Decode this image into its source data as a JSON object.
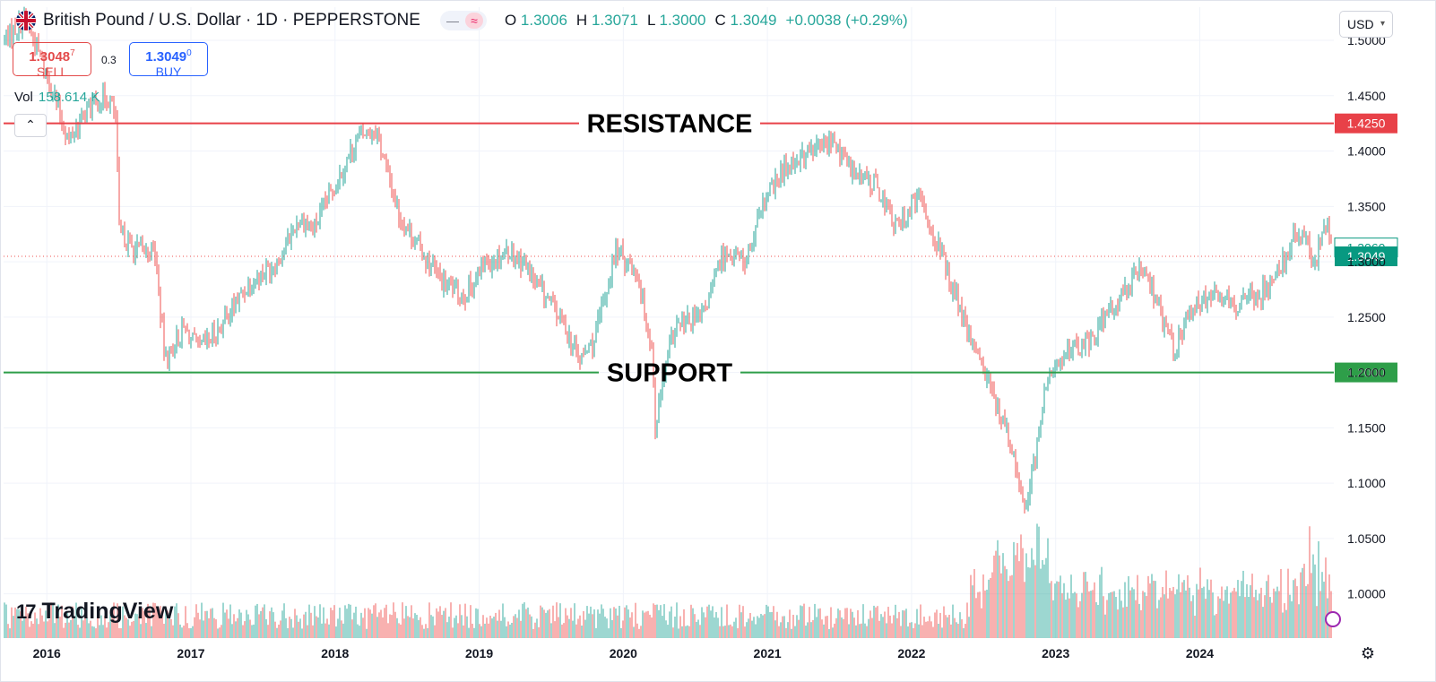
{
  "header": {
    "symbol_title": "British Pound / U.S. Dollar · 1D · PEPPERSTONE",
    "open_label": "O",
    "open_value": "1.3006",
    "high_label": "H",
    "high_value": "1.3071",
    "low_label": "L",
    "low_value": "1.3000",
    "close_label": "C",
    "close_value": "1.3049",
    "change": "+0.0038 (+0.29%)",
    "pill_left_icon": "dash-icon",
    "pill_right_icon": "wave-icon"
  },
  "trade": {
    "sell_price": "1.3048",
    "sell_price_sup": "7",
    "sell_label": "SELL",
    "spread": "0.3",
    "buy_price": "1.3049",
    "buy_price_sup": "0",
    "buy_label": "BUY"
  },
  "volume": {
    "label": "Vol",
    "value": "158.614 K"
  },
  "collapse_icon": "chevron-up-icon",
  "currency_button": "USD",
  "logo_text": "TradingView",
  "colors": {
    "up": "#26a69a",
    "down": "#ef5350",
    "resistance": "#e84148",
    "support": "#2e9e49",
    "last": "#089981",
    "buy": "#2962ff",
    "sell": "#e34a4a"
  },
  "chart_data": {
    "type": "candlestick",
    "ylim": [
      0.96,
      1.53
    ],
    "x_range": [
      2015.7,
      2024.93
    ],
    "yticks": [
      "1.5000",
      "1.4500",
      "1.4000",
      "1.3500",
      "1.3000",
      "1.2500",
      "1.2000",
      "1.1500",
      "1.1000",
      "1.0500",
      "1.0000"
    ],
    "ytick_values": [
      1.5,
      1.45,
      1.4,
      1.35,
      1.3,
      1.25,
      1.2,
      1.15,
      1.1,
      1.05,
      1.0
    ],
    "xticks": [
      "2016",
      "2017",
      "2018",
      "2019",
      "2020",
      "2021",
      "2022",
      "2023",
      "2024"
    ],
    "xtick_values": [
      2016.0,
      2017.0,
      2018.0,
      2019.0,
      2020.0,
      2021.0,
      2022.0,
      2023.0,
      2024.0
    ],
    "resistance": {
      "label": "RESISTANCE",
      "value": 1.425,
      "value_label": "1.4250"
    },
    "support": {
      "label": "SUPPORT",
      "value": 1.2,
      "value_label": "1.2000"
    },
    "last_price": {
      "value": 1.3049,
      "value_label": "1.3049"
    },
    "prev_price": {
      "value": 1.306,
      "value_label": "1.3060"
    },
    "price_path": [
      [
        2015.7,
        1.5
      ],
      [
        2015.85,
        1.52
      ],
      [
        2016.0,
        1.47
      ],
      [
        2016.15,
        1.41
      ],
      [
        2016.3,
        1.44
      ],
      [
        2016.42,
        1.45
      ],
      [
        2016.48,
        1.43
      ],
      [
        2016.5,
        1.33
      ],
      [
        2016.6,
        1.31
      ],
      [
        2016.75,
        1.31
      ],
      [
        2016.82,
        1.21
      ],
      [
        2016.95,
        1.24
      ],
      [
        2017.05,
        1.22
      ],
      [
        2017.2,
        1.24
      ],
      [
        2017.4,
        1.28
      ],
      [
        2017.6,
        1.3
      ],
      [
        2017.75,
        1.34
      ],
      [
        2017.85,
        1.33
      ],
      [
        2018.0,
        1.37
      ],
      [
        2018.15,
        1.41
      ],
      [
        2018.28,
        1.42
      ],
      [
        2018.45,
        1.34
      ],
      [
        2018.6,
        1.31
      ],
      [
        2018.75,
        1.28
      ],
      [
        2018.9,
        1.27
      ],
      [
        2019.05,
        1.3
      ],
      [
        2019.2,
        1.31
      ],
      [
        2019.3,
        1.3
      ],
      [
        2019.45,
        1.27
      ],
      [
        2019.6,
        1.24
      ],
      [
        2019.7,
        1.21
      ],
      [
        2019.8,
        1.23
      ],
      [
        2019.95,
        1.31
      ],
      [
        2020.1,
        1.29
      ],
      [
        2020.2,
        1.22
      ],
      [
        2020.22,
        1.15
      ],
      [
        2020.35,
        1.24
      ],
      [
        2020.55,
        1.25
      ],
      [
        2020.7,
        1.31
      ],
      [
        2020.85,
        1.3
      ],
      [
        2021.0,
        1.36
      ],
      [
        2021.15,
        1.39
      ],
      [
        2021.3,
        1.4
      ],
      [
        2021.45,
        1.41
      ],
      [
        2021.6,
        1.38
      ],
      [
        2021.75,
        1.37
      ],
      [
        2021.9,
        1.33
      ],
      [
        2022.05,
        1.36
      ],
      [
        2022.2,
        1.31
      ],
      [
        2022.35,
        1.25
      ],
      [
        2022.5,
        1.2
      ],
      [
        2022.6,
        1.17
      ],
      [
        2022.72,
        1.12
      ],
      [
        2022.78,
        1.08
      ],
      [
        2022.85,
        1.12
      ],
      [
        2022.95,
        1.2
      ],
      [
        2023.1,
        1.22
      ],
      [
        2023.25,
        1.23
      ],
      [
        2023.4,
        1.26
      ],
      [
        2023.5,
        1.28
      ],
      [
        2023.58,
        1.29
      ],
      [
        2023.68,
        1.27
      ],
      [
        2023.75,
        1.24
      ],
      [
        2023.82,
        1.22
      ],
      [
        2023.95,
        1.26
      ],
      [
        2024.1,
        1.27
      ],
      [
        2024.25,
        1.26
      ],
      [
        2024.4,
        1.27
      ],
      [
        2024.5,
        1.28
      ],
      [
        2024.65,
        1.32
      ],
      [
        2024.72,
        1.32
      ],
      [
        2024.8,
        1.3
      ],
      [
        2024.87,
        1.34
      ],
      [
        2024.93,
        1.305
      ]
    ]
  }
}
